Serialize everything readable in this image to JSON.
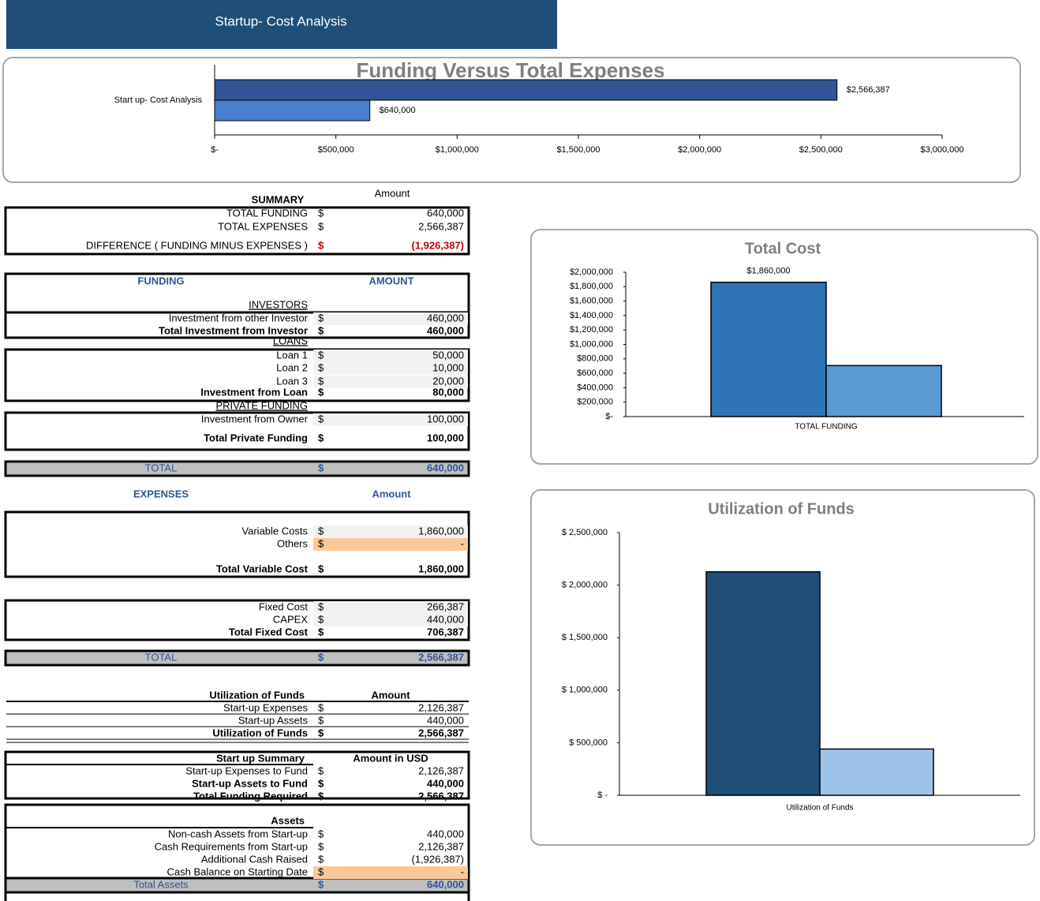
{
  "header": {
    "title": "Startup- Cost Analysis"
  },
  "chart_data": [
    {
      "type": "bar",
      "orientation": "horizontal",
      "title": "Funding Versus Total Expenses",
      "categories": [
        "Start up- Cost Analysis"
      ],
      "series": [
        {
          "color": "#2f5597",
          "values": [
            2566387
          ],
          "value_labels": [
            "$2,566,387"
          ]
        },
        {
          "color": "#4a7fd0",
          "values": [
            640000
          ],
          "value_labels": [
            "$640,000"
          ]
        }
      ],
      "xlim": [
        0,
        3000000
      ],
      "xticks": [
        {
          "value": 0,
          "label": "$-"
        },
        {
          "value": 500000,
          "label": "$500,000"
        },
        {
          "value": 1000000,
          "label": "$1,000,000"
        },
        {
          "value": 1500000,
          "label": "$1,500,000"
        },
        {
          "value": 2000000,
          "label": "$2,000,000"
        },
        {
          "value": 2500000,
          "label": "$2,500,000"
        },
        {
          "value": 3000000,
          "label": "$3,000,000"
        }
      ]
    },
    {
      "type": "bar",
      "title": "Total Cost",
      "categories": [
        "TOTAL FUNDING"
      ],
      "series": [
        {
          "color": "#2e75b6",
          "values": [
            1860000
          ],
          "value_labels": [
            "$1,860,000"
          ]
        },
        {
          "color": "#5b9bd5",
          "values": [
            706387
          ]
        }
      ],
      "ylim": [
        0,
        2000000
      ],
      "yticks": [
        {
          "value": 0,
          "label": "$-"
        },
        {
          "value": 200000,
          "label": "$200,000"
        },
        {
          "value": 400000,
          "label": "$400,000"
        },
        {
          "value": 600000,
          "label": "$600,000"
        },
        {
          "value": 800000,
          "label": "$800,000"
        },
        {
          "value": 1000000,
          "label": "$1,000,000"
        },
        {
          "value": 1200000,
          "label": "$1,200,000"
        },
        {
          "value": 1400000,
          "label": "$1,400,000"
        },
        {
          "value": 1600000,
          "label": "$1,600,000"
        },
        {
          "value": 1800000,
          "label": "$1,800,000"
        },
        {
          "value": 2000000,
          "label": "$2,000,000"
        }
      ]
    },
    {
      "type": "bar",
      "title": "Utilization of Funds",
      "categories": [
        "Utilization of Funds"
      ],
      "series": [
        {
          "color": "#1f4e79",
          "values": [
            2126387
          ]
        },
        {
          "color": "#9dc3e6",
          "values": [
            440000
          ]
        }
      ],
      "ylim": [
        0,
        2500000
      ],
      "yticks": [
        {
          "value": 0,
          "label": "$ -"
        },
        {
          "value": 500000,
          "label": "$ 500,000"
        },
        {
          "value": 1000000,
          "label": "$ 1,000,000"
        },
        {
          "value": 1500000,
          "label": "$ 1,500,000"
        },
        {
          "value": 2000000,
          "label": "$ 2,000,000"
        },
        {
          "value": 2500000,
          "label": "$ 2,500,000"
        }
      ]
    }
  ],
  "sheet": {
    "rows": [
      {
        "label": "SUMMARY",
        "amount": "Amount"
      },
      {
        "label": "TOTAL FUNDING",
        "currency": "$",
        "amount": "640,000"
      },
      {
        "label": "TOTAL EXPENSES",
        "currency": "$",
        "amount": "2,566,387"
      },
      {
        "label": "DIFFERENCE  ( FUNDING MINUS EXPENSES )",
        "currency": "$",
        "amount": "(1,926,387)"
      },
      {
        "label": "FUNDING",
        "amount": "AMOUNT"
      },
      {
        "label": "INVESTORS"
      },
      {
        "label": "Investment from other Investor",
        "currency": "$",
        "amount": "460,000"
      },
      {
        "label": "Total Investment from Investor",
        "currency": "$",
        "amount": "460,000"
      },
      {
        "label": "LOANS"
      },
      {
        "label": "Loan 1",
        "currency": "$",
        "amount": "50,000"
      },
      {
        "label": "Loan 2",
        "currency": "$",
        "amount": "10,000"
      },
      {
        "label": "Loan 3",
        "currency": "$",
        "amount": "20,000"
      },
      {
        "label": "Investment from Loan",
        "currency": "$",
        "amount": "80,000"
      },
      {
        "label": "PRIVATE FUNDING"
      },
      {
        "label": "Investment from Owner",
        "currency": "$",
        "amount": "100,000"
      },
      {
        "label": "Total Private Funding",
        "currency": "$",
        "amount": "100,000"
      },
      {
        "label": "TOTAL",
        "currency": "$",
        "amount": "640,000"
      },
      {
        "label": "EXPENSES",
        "amount": "Amount"
      },
      {
        "label": "Variable Costs",
        "currency": "$",
        "amount": "1,860,000"
      },
      {
        "label": "Others",
        "currency": "$",
        "amount": "-"
      },
      {
        "label": "Total Variable Cost",
        "currency": "$",
        "amount": "1,860,000"
      },
      {
        "label": "Fixed Cost",
        "currency": "$",
        "amount": "266,387"
      },
      {
        "label": "CAPEX",
        "currency": "$",
        "amount": "440,000"
      },
      {
        "label": "Total Fixed Cost",
        "currency": "$",
        "amount": "706,387"
      },
      {
        "label": "TOTAL",
        "currency": "$",
        "amount": "2,566,387"
      },
      {
        "label": "Utilization of Funds",
        "amount": "Amount"
      },
      {
        "label": "Start-up Expenses",
        "currency": "$",
        "amount": "2,126,387"
      },
      {
        "label": "Start-up Assets",
        "currency": "$",
        "amount": "440,000"
      },
      {
        "label": "Utilization of Funds",
        "currency": "$",
        "amount": "2,566,387"
      },
      {
        "label": "Start up Summary",
        "amount": "Amount in USD"
      },
      {
        "label": "Start-up Expenses to Fund",
        "currency": "$",
        "amount": "2,126,387"
      },
      {
        "label": "Start-up Assets to Fund",
        "currency": "$",
        "amount": "440,000"
      },
      {
        "label": "Total Funding Required",
        "currency": "$",
        "amount": "2,566,387"
      },
      {
        "label": "Assets"
      },
      {
        "label": "Non-cash Assets from Start-up",
        "currency": "$",
        "amount": "440,000"
      },
      {
        "label": "Cash Requirements from Start-up",
        "currency": "$",
        "amount": "2,126,387"
      },
      {
        "label": "Additional Cash Raised",
        "currency": "$",
        "amount": "(1,926,387)"
      },
      {
        "label": "Cash Balance on Starting Date",
        "currency": "$",
        "amount": "-"
      },
      {
        "label": "Total Assets",
        "currency": "$",
        "amount": "640,000"
      }
    ]
  }
}
